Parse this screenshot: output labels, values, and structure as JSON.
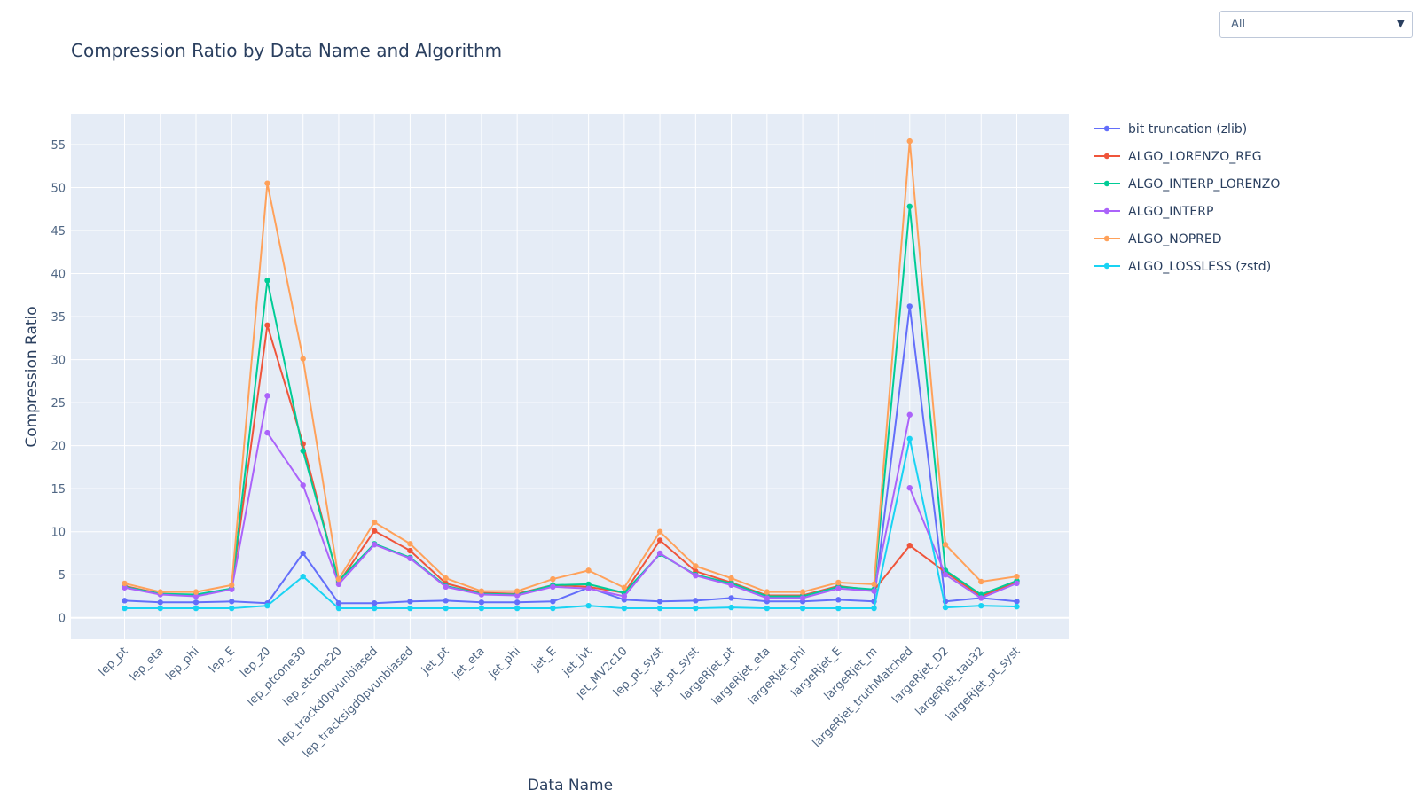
{
  "dropdown": {
    "selected": "All",
    "icon": "chevron-down-icon"
  },
  "chart_data": {
    "type": "line",
    "title": "Compression Ratio by Data Name and Algorithm",
    "xlabel": "Data Name",
    "ylabel": "Compression Ratio",
    "ylim": [
      -2.5,
      58.5
    ],
    "yticks": [
      0,
      5,
      10,
      15,
      20,
      25,
      30,
      35,
      40,
      45,
      50,
      55
    ],
    "grid": true,
    "legend_position": "right",
    "categories": [
      "lep_pt",
      "lep_eta",
      "lep_phi",
      "lep_E",
      "lep_z0",
      "lep_ptcone30",
      "lep_etcone20",
      "lep_trackd0pvunbiased",
      "lep_tracksigd0pvunbiased",
      "jet_pt",
      "jet_eta",
      "jet_phi",
      "jet_E",
      "jet_jvt",
      "jet_MV2c10",
      "lep_pt_syst",
      "jet_pt_syst",
      "largeRjet_pt",
      "largeRjet_eta",
      "largeRjet_phi",
      "largeRjet_E",
      "largeRjet_m",
      "largeRjet_truthMatched",
      "largeRjet_D2",
      "largeRjet_tau32",
      "largeRjet_pt_syst"
    ],
    "series": [
      {
        "name": "bit truncation (zlib)",
        "color": "#636efa",
        "values": [
          2.0,
          1.8,
          1.8,
          1.9,
          1.7,
          7.5,
          1.7,
          1.7,
          1.9,
          2.0,
          1.8,
          1.8,
          1.9,
          3.5,
          2.1,
          1.9,
          2.0,
          2.3,
          1.9,
          1.9,
          2.1,
          1.9,
          36.2,
          1.9,
          2.3,
          1.9
        ]
      },
      {
        "name": "ALGO_LORENZO_REG",
        "color": "#ef553b",
        "values": [
          3.7,
          2.8,
          2.6,
          3.4,
          34.0,
          20.2,
          4.1,
          10.1,
          7.8,
          4.0,
          2.9,
          2.8,
          3.8,
          3.6,
          2.9,
          9.0,
          5.4,
          4.1,
          2.6,
          2.6,
          3.7,
          3.2,
          8.4,
          5.3,
          2.5,
          4.2
        ]
      },
      {
        "name": "ALGO_INTERP_LORENZO",
        "color": "#00cc96",
        "values": [
          3.6,
          2.8,
          2.7,
          3.4,
          39.2,
          19.4,
          4.3,
          8.6,
          7.0,
          3.7,
          2.8,
          2.7,
          3.8,
          3.9,
          2.9,
          7.4,
          5.0,
          4.0,
          2.5,
          2.5,
          3.6,
          3.3,
          47.8,
          5.5,
          2.7,
          4.3
        ]
      },
      {
        "name": "ALGO_INTERP",
        "color": "#ab63fa",
        "segments": [
          {
            "x": [
              "lep_pt",
              "lep_eta",
              "lep_phi",
              "lep_E",
              "lep_z0"
            ],
            "values": [
              3.5,
              2.7,
              2.5,
              3.3,
              25.8
            ]
          },
          {
            "x": [
              "lep_z0",
              "lep_ptcone30",
              "lep_etcone20",
              "lep_trackd0pvunbiased",
              "lep_tracksigd0pvunbiased",
              "jet_pt",
              "jet_eta",
              "jet_phi",
              "jet_E",
              "jet_jvt",
              "jet_MV2c10",
              "lep_pt_syst",
              "jet_pt_syst",
              "largeRjet_pt",
              "largeRjet_eta",
              "largeRjet_phi",
              "largeRjet_E",
              "largeRjet_m",
              "largeRjet_truthMatched"
            ],
            "values": [
              21.5,
              15.4,
              3.9,
              8.5,
              6.9,
              3.6,
              2.7,
              2.6,
              3.6,
              3.4,
              2.5,
              7.5,
              4.9,
              3.8,
              2.3,
              2.3,
              3.4,
              3.1,
              23.6
            ]
          },
          {
            "x": [
              "largeRjet_truthMatched",
              "largeRjet_D2",
              "largeRjet_tau32",
              "largeRjet_pt_syst"
            ],
            "values": [
              15.1,
              5.0,
              2.3,
              4.0
            ]
          }
        ]
      },
      {
        "name": "ALGO_NOPRED",
        "color": "#ffa15a",
        "values": [
          4.0,
          3.0,
          3.0,
          3.8,
          50.5,
          30.1,
          4.5,
          11.1,
          8.6,
          4.6,
          3.1,
          3.1,
          4.5,
          5.5,
          3.5,
          10.0,
          6.0,
          4.6,
          3.0,
          3.0,
          4.1,
          3.9,
          55.4,
          8.5,
          4.2,
          4.8
        ]
      },
      {
        "name": "ALGO_LOSSLESS (zstd)",
        "color": "#19d3f3",
        "values": [
          1.1,
          1.1,
          1.1,
          1.1,
          1.4,
          4.8,
          1.1,
          1.1,
          1.1,
          1.1,
          1.1,
          1.1,
          1.1,
          1.4,
          1.1,
          1.1,
          1.1,
          1.2,
          1.1,
          1.1,
          1.1,
          1.1,
          20.8,
          1.2,
          1.4,
          1.3
        ]
      }
    ]
  }
}
